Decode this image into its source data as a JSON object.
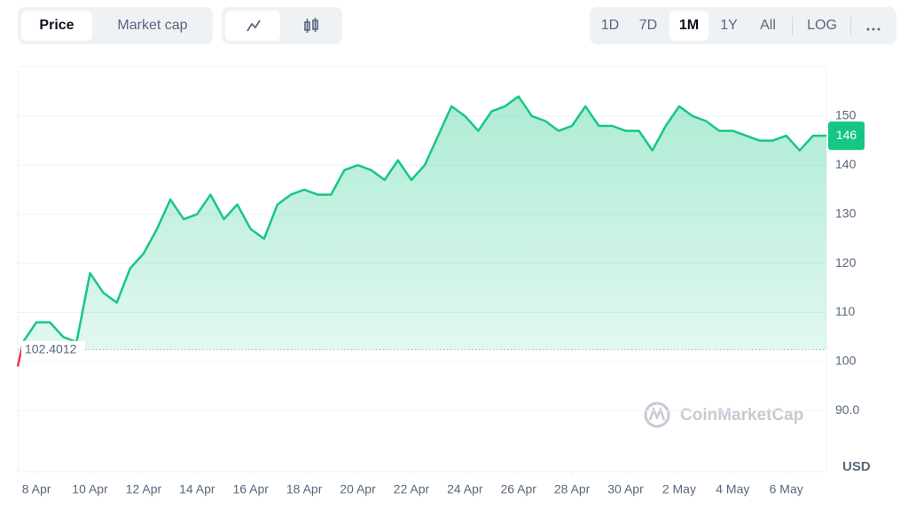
{
  "ui": {
    "tabs": [
      "Price",
      "Market cap"
    ],
    "ranges": [
      "1D",
      "7D",
      "1M",
      "1Y",
      "All",
      "LOG"
    ],
    "brand": "CoinMarketCap"
  },
  "chart_data": {
    "type": "line",
    "color": "#16c784",
    "down_color": "#ea3943",
    "x": [
      -0.7,
      -0.5,
      0,
      0.5,
      1,
      1.5,
      2,
      2.5,
      3,
      3.5,
      4,
      4.5,
      5,
      5.5,
      6,
      6.5,
      7,
      7.5,
      8,
      8.5,
      9,
      9.5,
      10,
      10.5,
      11,
      11.5,
      12,
      12.5,
      13,
      13.5,
      14,
      14.5,
      15,
      15.5,
      16,
      16.5,
      17,
      17.5,
      18,
      18.5,
      19,
      19.5,
      20,
      20.5,
      21,
      21.5,
      22,
      22.5,
      23,
      23.5,
      24,
      24.5,
      25,
      25.5,
      26,
      26.5,
      27,
      27.5,
      28,
      28.5,
      29,
      29.5
    ],
    "values": [
      99,
      104,
      108,
      108,
      105,
      104,
      118,
      114,
      112,
      119,
      122,
      127,
      133,
      129,
      130,
      134,
      129,
      132,
      127,
      125,
      132,
      134,
      135,
      134,
      134,
      139,
      140,
      139,
      137,
      141,
      137,
      140,
      146,
      152,
      150,
      147,
      151,
      152,
      154,
      150,
      149,
      147,
      148,
      152,
      148,
      148,
      147,
      147,
      143,
      148,
      152,
      150,
      149,
      147,
      147,
      146,
      145,
      145,
      146,
      143,
      146,
      146
    ],
    "xlim": [
      -0.7,
      29.5
    ],
    "xticks": [
      {
        "value": 0,
        "label": "8 Apr"
      },
      {
        "value": 2,
        "label": "10 Apr"
      },
      {
        "value": 4,
        "label": "12 Apr"
      },
      {
        "value": 6,
        "label": "14 Apr"
      },
      {
        "value": 8,
        "label": "16 Apr"
      },
      {
        "value": 10,
        "label": "18 Apr"
      },
      {
        "value": 12,
        "label": "20 Apr"
      },
      {
        "value": 14,
        "label": "22 Apr"
      },
      {
        "value": 16,
        "label": "24 Apr"
      },
      {
        "value": 18,
        "label": "26 Apr"
      },
      {
        "value": 20,
        "label": "28 Apr"
      },
      {
        "value": 22,
        "label": "30 Apr"
      },
      {
        "value": 24,
        "label": "2 May"
      },
      {
        "value": 26,
        "label": "4 May"
      },
      {
        "value": 28,
        "label": "6 May"
      }
    ],
    "ylim": [
      77.6,
      160.1
    ],
    "yticks": [
      {
        "value": 90,
        "label": "90.0"
      },
      100,
      110,
      120,
      130,
      140,
      150
    ],
    "grid": true,
    "reference": 102.4012,
    "current_price": 146,
    "unit_label": "USD"
  }
}
